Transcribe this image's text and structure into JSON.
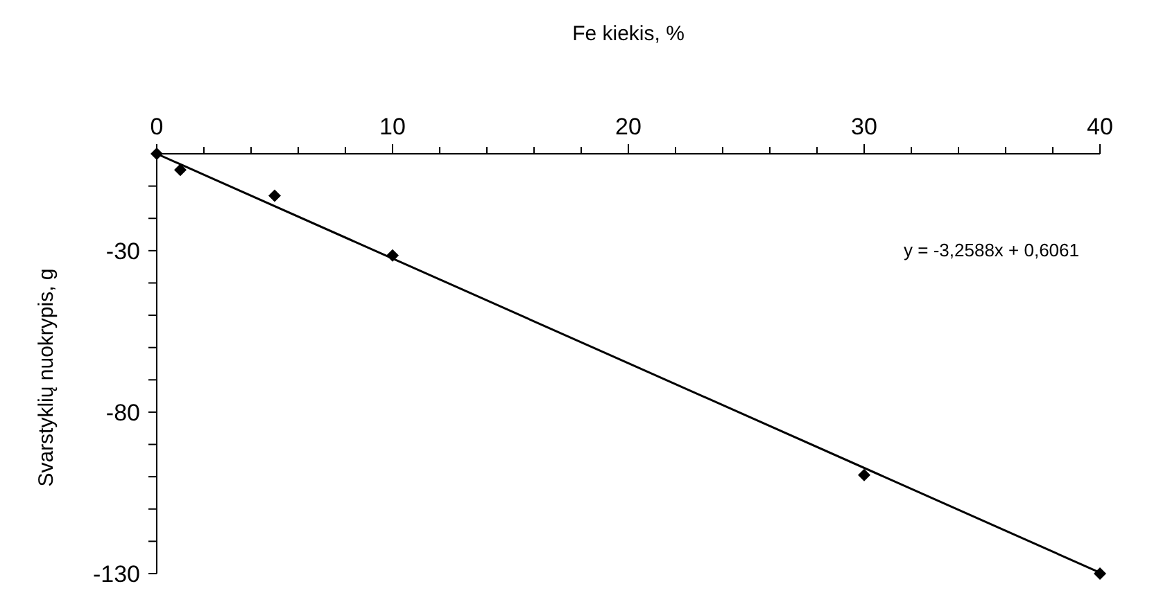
{
  "chart_data": {
    "type": "scatter",
    "xlabel": "Fe kiekis, %",
    "ylabel": "Svarstyklių nuokrypis, g",
    "annotations": [
      "y = -3,2588x + 0,6061"
    ],
    "xlim": [
      0,
      40
    ],
    "ylim": [
      -130,
      0
    ],
    "xticks": [
      0,
      {
        "value": 2,
        "label": null
      },
      {
        "value": 4,
        "label": null
      },
      {
        "value": 6,
        "label": null
      },
      {
        "value": 8,
        "label": null
      },
      10,
      {
        "value": 12,
        "label": null
      },
      {
        "value": 14,
        "label": null
      },
      {
        "value": 16,
        "label": null
      },
      {
        "value": 18,
        "label": null
      },
      20,
      {
        "value": 22,
        "label": null
      },
      {
        "value": 24,
        "label": null
      },
      {
        "value": 26,
        "label": null
      },
      {
        "value": 28,
        "label": null
      },
      30,
      {
        "value": 32,
        "label": null
      },
      {
        "value": 34,
        "label": null
      },
      {
        "value": 36,
        "label": null
      },
      {
        "value": 38,
        "label": null
      },
      40
    ],
    "yticks": [
      -130,
      {
        "value": -120,
        "label": null
      },
      {
        "value": -110,
        "label": null
      },
      {
        "value": -100,
        "label": null
      },
      {
        "value": -90,
        "label": null
      },
      -80,
      {
        "value": -70,
        "label": null
      },
      {
        "value": -60,
        "label": null
      },
      {
        "value": -50,
        "label": null
      },
      {
        "value": -40,
        "label": null
      },
      -30,
      {
        "value": -20,
        "label": null
      },
      {
        "value": -10,
        "label": null
      }
    ],
    "grid": false,
    "marker": "diamond",
    "series": [
      {
        "color": "#000000",
        "x": [
          0,
          1,
          5,
          10,
          30,
          40
        ],
        "values": [
          0,
          -5,
          -13,
          -31.5,
          -99.5,
          -130
        ]
      },
      {
        "type": "line",
        "color": "#000000",
        "marker": "none",
        "line_style": "solid",
        "x": [
          0,
          40
        ],
        "values": [
          0,
          -129.7
        ]
      }
    ]
  }
}
